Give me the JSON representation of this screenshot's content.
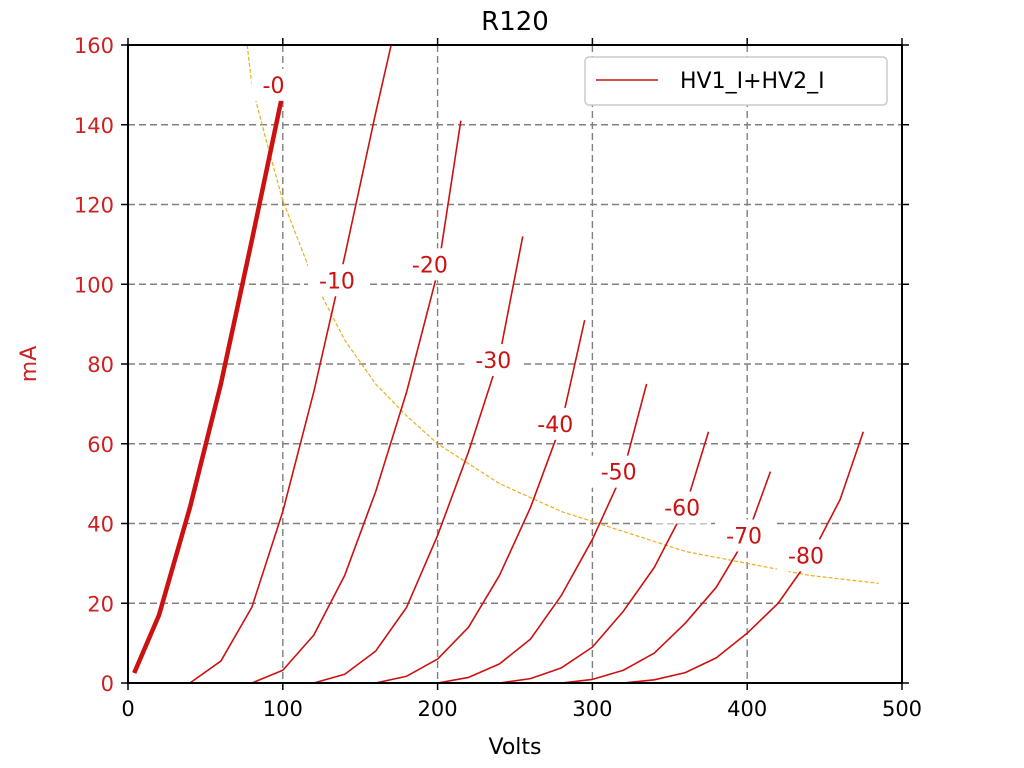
{
  "chart_data": {
    "type": "line",
    "title": "R120",
    "xlabel": "Volts",
    "ylabel": "mA",
    "xlim": [
      0,
      500
    ],
    "ylim": [
      0,
      160
    ],
    "xticks": [
      0,
      100,
      200,
      300,
      400,
      500
    ],
    "yticks": [
      0,
      20,
      40,
      60,
      80,
      100,
      120,
      140,
      160
    ],
    "grid": true,
    "legend": {
      "position": "top-right",
      "entries": [
        "HV1_I+HV2_I"
      ]
    },
    "colors": {
      "curves": "#cc1111",
      "load_line": "#e8b020",
      "ylabel": "#cc2222",
      "grid": "#808080"
    },
    "series": [
      {
        "grid_voltage": "-0",
        "x": [
          4,
          20,
          40,
          60,
          80,
          100
        ],
        "y": [
          2.5,
          17,
          44,
          75,
          111,
          148
        ]
      },
      {
        "grid_voltage": "-10",
        "x": [
          40,
          60,
          80,
          100,
          120,
          140,
          160,
          170
        ],
        "y": [
          0,
          5.5,
          19,
          43,
          73,
          107,
          143,
          160
        ]
      },
      {
        "grid_voltage": "-20",
        "x": [
          80,
          100,
          120,
          140,
          160,
          180,
          200,
          215
        ],
        "y": [
          0,
          3.2,
          12,
          27,
          48,
          73,
          103,
          141
        ]
      },
      {
        "grid_voltage": "-30",
        "x": [
          120,
          140,
          160,
          180,
          200,
          220,
          240,
          255
        ],
        "y": [
          0,
          2.2,
          8,
          19,
          37,
          58,
          82,
          112
        ]
      },
      {
        "grid_voltage": "-40",
        "x": [
          160,
          180,
          200,
          220,
          240,
          260,
          280,
          295
        ],
        "y": [
          0,
          1.7,
          6,
          14,
          27,
          44,
          65,
          91
        ]
      },
      {
        "grid_voltage": "-50",
        "x": [
          200,
          220,
          240,
          260,
          280,
          300,
          320,
          335
        ],
        "y": [
          0,
          1.4,
          4.8,
          11,
          22,
          36,
          53,
          75
        ]
      },
      {
        "grid_voltage": "-60",
        "x": [
          240,
          260,
          280,
          300,
          320,
          340,
          360,
          375
        ],
        "y": [
          0,
          1.1,
          3.8,
          9,
          18,
          29,
          44,
          63
        ]
      },
      {
        "grid_voltage": "-70",
        "x": [
          280,
          300,
          320,
          340,
          360,
          380,
          400,
          415
        ],
        "y": [
          0,
          0.9,
          3.2,
          7.5,
          15,
          24,
          37,
          53
        ]
      },
      {
        "grid_voltage": "-80",
        "x": [
          320,
          340,
          360,
          380,
          400,
          420,
          440,
          460,
          475
        ],
        "y": [
          0,
          0.8,
          2.6,
          6.3,
          12.5,
          20,
          31,
          46,
          63
        ]
      }
    ],
    "load_line": {
      "x": [
        77,
        80,
        90,
        100,
        120,
        140,
        160,
        180,
        200,
        240,
        280,
        320,
        360,
        400,
        440,
        485
      ],
      "y": [
        160,
        150,
        135,
        121,
        101,
        86,
        75,
        67,
        60,
        50,
        43,
        38,
        33,
        30,
        27,
        25
      ]
    },
    "curve_labels": [
      {
        "text": "-0",
        "x": 94,
        "y": 150
      },
      {
        "text": "-10",
        "x": 135,
        "y": 101
      },
      {
        "text": "-20",
        "x": 195,
        "y": 105
      },
      {
        "text": "-30",
        "x": 236,
        "y": 81
      },
      {
        "text": "-40",
        "x": 276,
        "y": 65
      },
      {
        "text": "-50",
        "x": 317,
        "y": 53
      },
      {
        "text": "-60",
        "x": 358,
        "y": 44
      },
      {
        "text": "-70",
        "x": 398,
        "y": 37
      },
      {
        "text": "-80",
        "x": 438,
        "y": 32
      }
    ]
  }
}
